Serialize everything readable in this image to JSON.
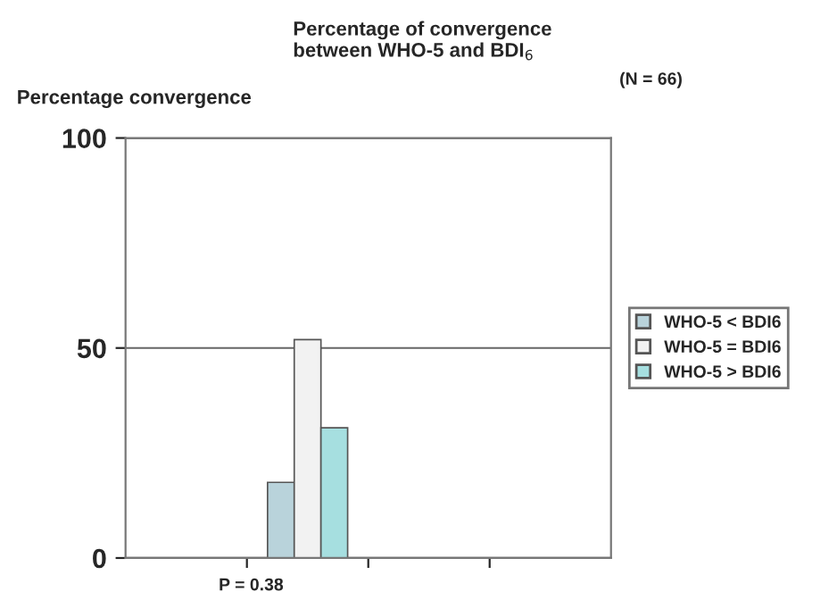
{
  "chart_data": {
    "type": "bar",
    "title": "Percentage of convergence\nbetween WHO-5 and BDI$_{6}$",
    "ylabel": "Percentage convergence",
    "categories": [
      null,
      null,
      null,
      null
    ],
    "series": [
      {
        "name": "WHO-5 < BDI6",
        "color": "#b9d3db",
        "values": [
          null,
          18,
          null,
          null
        ]
      },
      {
        "name": "WHO-5 = BDI6",
        "color": "#f2f2f2",
        "values": [
          null,
          52,
          null,
          null
        ]
      },
      {
        "name": "WHO-5 > BDI6",
        "color": "#a6dfe0",
        "values": [
          null,
          31,
          null,
          null
        ]
      }
    ],
    "ylim": [
      0,
      100
    ],
    "yticks": [
      0,
      50,
      100
    ],
    "grid": "y",
    "legend": "right",
    "annotations": [
      "(N = 66)",
      "P = 0.38"
    ]
  }
}
